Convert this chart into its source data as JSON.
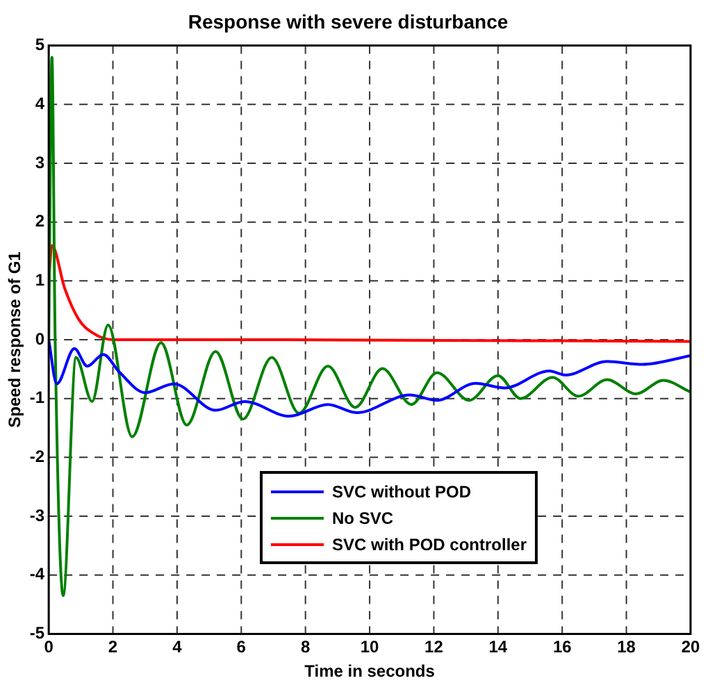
{
  "chart_data": {
    "type": "line",
    "title": "Response with severe disturbance",
    "xlabel": "Time in seconds",
    "ylabel": "Speed response of G1",
    "xlim": [
      0,
      20
    ],
    "xticks": [
      0,
      2,
      4,
      6,
      8,
      10,
      12,
      14,
      16,
      18,
      20
    ],
    "ylim": [
      -5,
      5
    ],
    "yticks": [
      -5,
      -4,
      -3,
      -2,
      -1,
      0,
      1,
      2,
      3,
      4,
      5
    ],
    "grid": true,
    "legend": "bottom right",
    "marker": "none",
    "line_style": "solid",
    "series": [
      {
        "name": "SVC without POD",
        "color": "#0000ff",
        "x": [
          0,
          0.25,
          0.8,
          1.2,
          1.7,
          2.2,
          3.0,
          3.9,
          5.2,
          6.1,
          7.5,
          8.7,
          9.6,
          11.25,
          12.1,
          13.3,
          14.2,
          15.6,
          16.1,
          17.4,
          18.5,
          20
        ],
        "values": [
          0,
          -0.75,
          -0.15,
          -0.45,
          -0.25,
          -0.55,
          -0.9,
          -0.75,
          -1.2,
          -1.05,
          -1.3,
          -1.1,
          -1.24,
          -0.94,
          -1.03,
          -0.74,
          -0.82,
          -0.53,
          -0.6,
          -0.37,
          -0.42,
          -0.27
        ]
      },
      {
        "name": "No SVC",
        "color": "#008000",
        "x": [
          0,
          0.1,
          0.2,
          0.45,
          0.85,
          1.35,
          1.85,
          2.6,
          3.5,
          4.3,
          5.2,
          6.05,
          6.95,
          7.8,
          8.7,
          9.55,
          10.4,
          11.3,
          12.1,
          13.1,
          14.0,
          14.7,
          15.7,
          16.5,
          17.4,
          18.3,
          19.15,
          20
        ],
        "values": [
          0,
          4.8,
          0,
          -4.35,
          -0.3,
          -1.05,
          0.25,
          -1.65,
          -0.05,
          -1.45,
          -0.2,
          -1.35,
          -0.3,
          -1.25,
          -0.45,
          -1.15,
          -0.49,
          -1.1,
          -0.56,
          -1.03,
          -0.61,
          -1.0,
          -0.64,
          -0.96,
          -0.68,
          -0.92,
          -0.69,
          -0.89
        ]
      },
      {
        "name": "SVC with POD controller",
        "color": "#ff0000",
        "x": [
          0,
          0.1,
          0.5,
          0.93,
          1.36,
          2,
          7,
          20
        ],
        "values": [
          1.0,
          1.6,
          0.87,
          0.35,
          0.12,
          0,
          0,
          -0.03
        ]
      }
    ]
  }
}
